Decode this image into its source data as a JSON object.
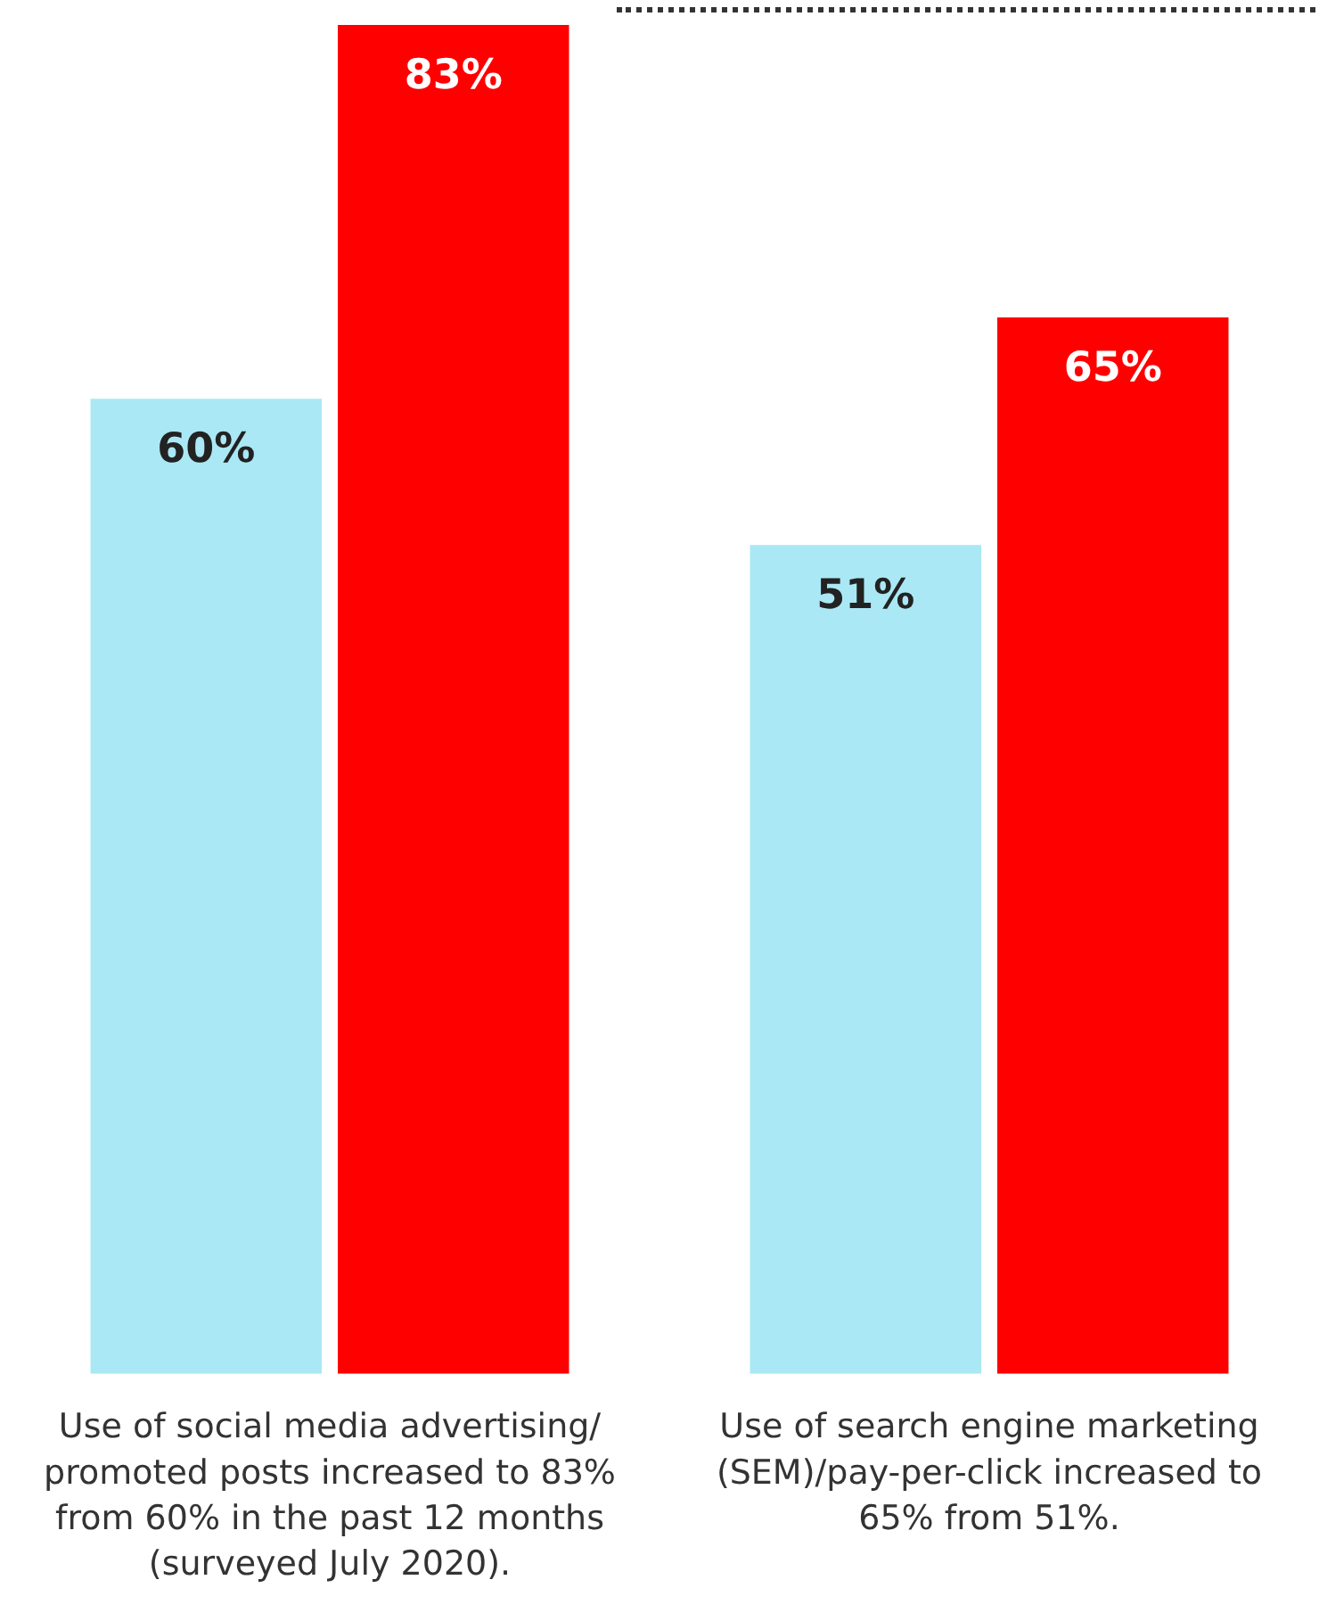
{
  "chart_data": {
    "type": "bar",
    "categories": [
      "Use of social media advertising/promoted posts increased to 83% from 60% in the past 12 months (surveyed July 2020).",
      "Use of search engine marketing (SEM)/pay-per-click increased to 65% from 51%."
    ],
    "series": [
      {
        "color": "#aae8f5",
        "values": [
          60,
          51
        ],
        "value_labels": [
          "60%",
          "51%"
        ]
      },
      {
        "color": "#ff0000",
        "values": [
          83,
          65
        ],
        "value_labels": [
          "83%",
          "65%"
        ]
      }
    ],
    "tick_labels": "x",
    "grid": false,
    "legend": false
  }
}
